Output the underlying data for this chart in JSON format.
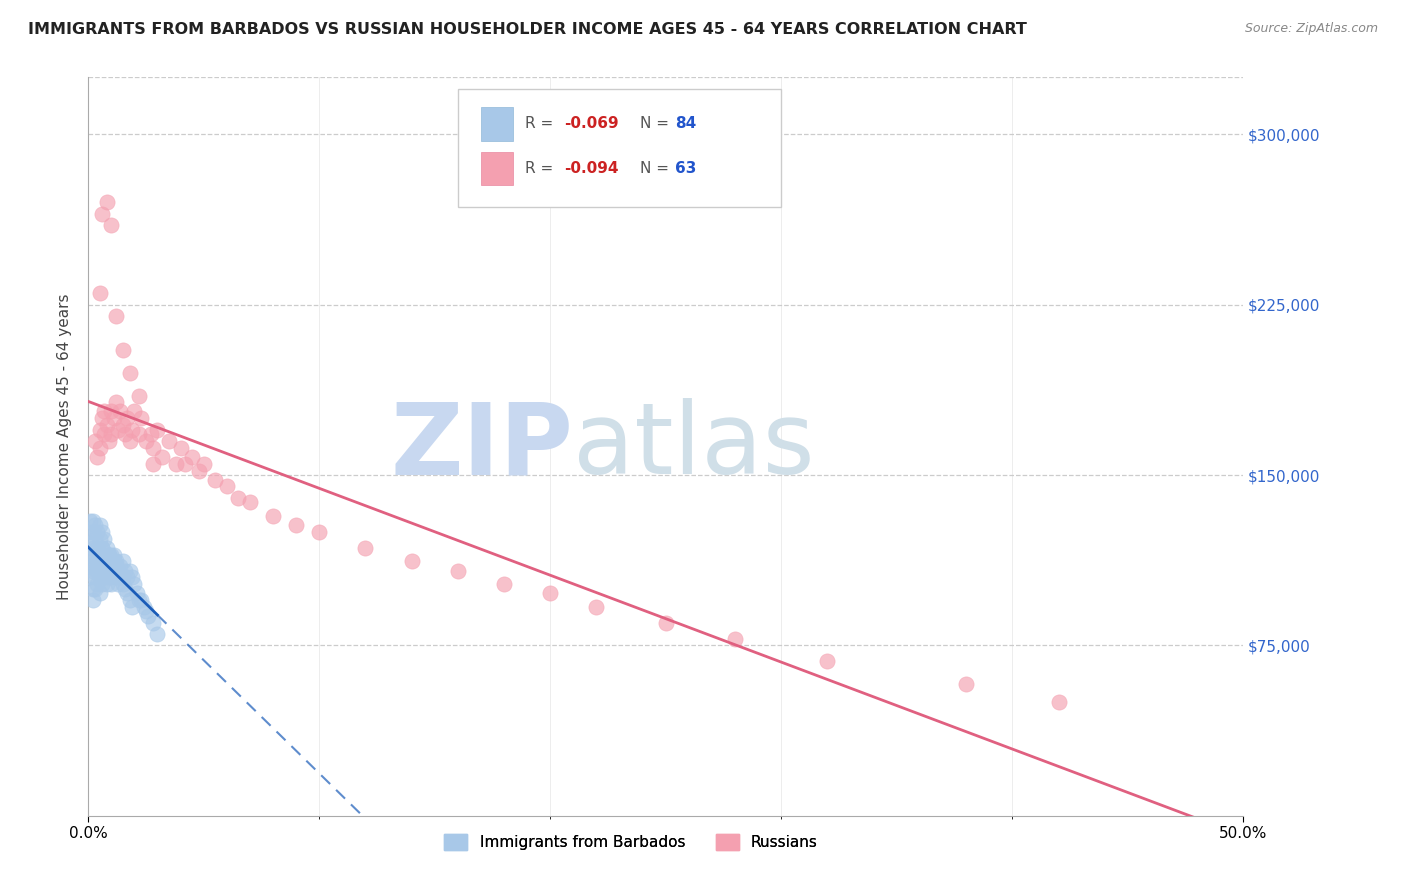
{
  "title": "IMMIGRANTS FROM BARBADOS VS RUSSIAN HOUSEHOLDER INCOME AGES 45 - 64 YEARS CORRELATION CHART",
  "source": "Source: ZipAtlas.com",
  "ylabel": "Householder Income Ages 45 - 64 years",
  "ytick_labels": [
    "$75,000",
    "$150,000",
    "$225,000",
    "$300,000"
  ],
  "ytick_values": [
    75000,
    150000,
    225000,
    300000
  ],
  "ymin": 0,
  "ymax": 325000,
  "xmin": 0.0,
  "xmax": 0.5,
  "watermark_zip": "ZIP",
  "watermark_atlas": "atlas",
  "legend_bottom": [
    {
      "label": "Immigrants from Barbados",
      "color": "#a8c8e8"
    },
    {
      "label": "Russians",
      "color": "#f4a0b0"
    }
  ],
  "barbados_x": [
    0.001,
    0.001,
    0.001,
    0.001,
    0.002,
    0.002,
    0.002,
    0.002,
    0.002,
    0.003,
    0.003,
    0.003,
    0.003,
    0.004,
    0.004,
    0.004,
    0.004,
    0.005,
    0.005,
    0.005,
    0.005,
    0.006,
    0.006,
    0.006,
    0.006,
    0.007,
    0.007,
    0.007,
    0.008,
    0.008,
    0.008,
    0.009,
    0.009,
    0.009,
    0.01,
    0.01,
    0.01,
    0.011,
    0.011,
    0.012,
    0.012,
    0.013,
    0.013,
    0.014,
    0.014,
    0.015,
    0.015,
    0.016,
    0.017,
    0.018,
    0.019,
    0.02,
    0.021,
    0.022,
    0.023,
    0.024,
    0.025,
    0.026,
    0.028,
    0.03,
    0.001,
    0.001,
    0.002,
    0.002,
    0.003,
    0.003,
    0.004,
    0.005,
    0.005,
    0.006,
    0.006,
    0.007,
    0.008,
    0.009,
    0.01,
    0.011,
    0.012,
    0.013,
    0.014,
    0.015,
    0.016,
    0.017,
    0.018,
    0.019
  ],
  "barbados_y": [
    120000,
    115000,
    110000,
    105000,
    118000,
    112000,
    108000,
    100000,
    95000,
    115000,
    110000,
    105000,
    100000,
    118000,
    112000,
    108000,
    102000,
    115000,
    110000,
    105000,
    98000,
    118000,
    112000,
    108000,
    102000,
    115000,
    110000,
    105000,
    112000,
    108000,
    102000,
    115000,
    110000,
    105000,
    112000,
    108000,
    102000,
    115000,
    108000,
    112000,
    105000,
    108000,
    102000,
    110000,
    105000,
    112000,
    105000,
    108000,
    105000,
    108000,
    105000,
    102000,
    98000,
    95000,
    95000,
    92000,
    90000,
    88000,
    85000,
    80000,
    130000,
    125000,
    130000,
    125000,
    128000,
    122000,
    125000,
    128000,
    122000,
    125000,
    118000,
    122000,
    118000,
    115000,
    115000,
    112000,
    110000,
    108000,
    105000,
    102000,
    100000,
    98000,
    95000,
    92000
  ],
  "russians_x": [
    0.003,
    0.004,
    0.005,
    0.005,
    0.006,
    0.007,
    0.007,
    0.008,
    0.009,
    0.01,
    0.01,
    0.011,
    0.012,
    0.013,
    0.014,
    0.015,
    0.016,
    0.017,
    0.018,
    0.019,
    0.02,
    0.022,
    0.023,
    0.025,
    0.027,
    0.028,
    0.03,
    0.032,
    0.035,
    0.038,
    0.04,
    0.042,
    0.045,
    0.048,
    0.05,
    0.055,
    0.06,
    0.065,
    0.07,
    0.08,
    0.09,
    0.1,
    0.12,
    0.14,
    0.16,
    0.18,
    0.2,
    0.22,
    0.25,
    0.28,
    0.32,
    0.38,
    0.42,
    0.005,
    0.006,
    0.008,
    0.01,
    0.012,
    0.015,
    0.018,
    0.022,
    0.028
  ],
  "russians_y": [
    165000,
    158000,
    170000,
    162000,
    175000,
    168000,
    178000,
    172000,
    165000,
    178000,
    168000,
    175000,
    182000,
    170000,
    178000,
    172000,
    168000,
    175000,
    165000,
    170000,
    178000,
    168000,
    175000,
    165000,
    168000,
    162000,
    170000,
    158000,
    165000,
    155000,
    162000,
    155000,
    158000,
    152000,
    155000,
    148000,
    145000,
    140000,
    138000,
    132000,
    128000,
    125000,
    118000,
    112000,
    108000,
    102000,
    98000,
    92000,
    85000,
    78000,
    68000,
    58000,
    50000,
    230000,
    265000,
    270000,
    260000,
    220000,
    205000,
    195000,
    185000,
    155000
  ],
  "barbados_line_color": "#1a5cb8",
  "russians_line_color": "#e06080",
  "scatter_barbados_color": "#a8c8e8",
  "scatter_russians_color": "#f4a0b0",
  "scatter_alpha": 0.65,
  "scatter_size": 120,
  "grid_color": "#cccccc",
  "background_color": "#ffffff",
  "title_fontsize": 11.5,
  "axis_label_fontsize": 11,
  "tick_fontsize": 11,
  "source_fontsize": 9,
  "watermark_color_zip": "#c8d8f0",
  "watermark_color_atlas": "#d0dfe8",
  "watermark_fontsize": 72
}
